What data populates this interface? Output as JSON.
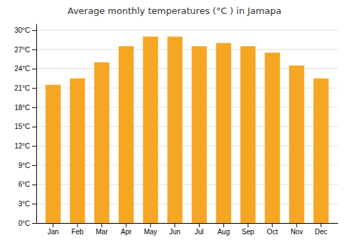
{
  "chart_data": {
    "type": "bar",
    "title": "Average monthly temperatures (°C ) in Jamapa",
    "categories": [
      "Jan",
      "Feb",
      "Mar",
      "Apr",
      "May",
      "Jun",
      "Jul",
      "Aug",
      "Sep",
      "Oct",
      "Nov",
      "Dec"
    ],
    "values": [
      21.5,
      22.5,
      25.0,
      27.5,
      29.0,
      29.0,
      27.5,
      28.0,
      27.5,
      26.5,
      24.5,
      22.5
    ],
    "color": "#F5A623",
    "ylim": [
      0,
      31
    ],
    "yticks": [
      {
        "value": 0,
        "label": "0°C"
      },
      {
        "value": 3,
        "label": "3°C"
      },
      {
        "value": 6,
        "label": "6°C"
      },
      {
        "value": 9,
        "label": "9°C"
      },
      {
        "value": 12,
        "label": "12°C"
      },
      {
        "value": 15,
        "label": "15°C"
      },
      {
        "value": 18,
        "label": "18°C"
      },
      {
        "value": 21,
        "label": "21°C"
      },
      {
        "value": 24,
        "label": "24°C"
      },
      {
        "value": 27,
        "label": "27°C"
      },
      {
        "value": 30,
        "label": "30°C"
      }
    ],
    "grid": true
  }
}
